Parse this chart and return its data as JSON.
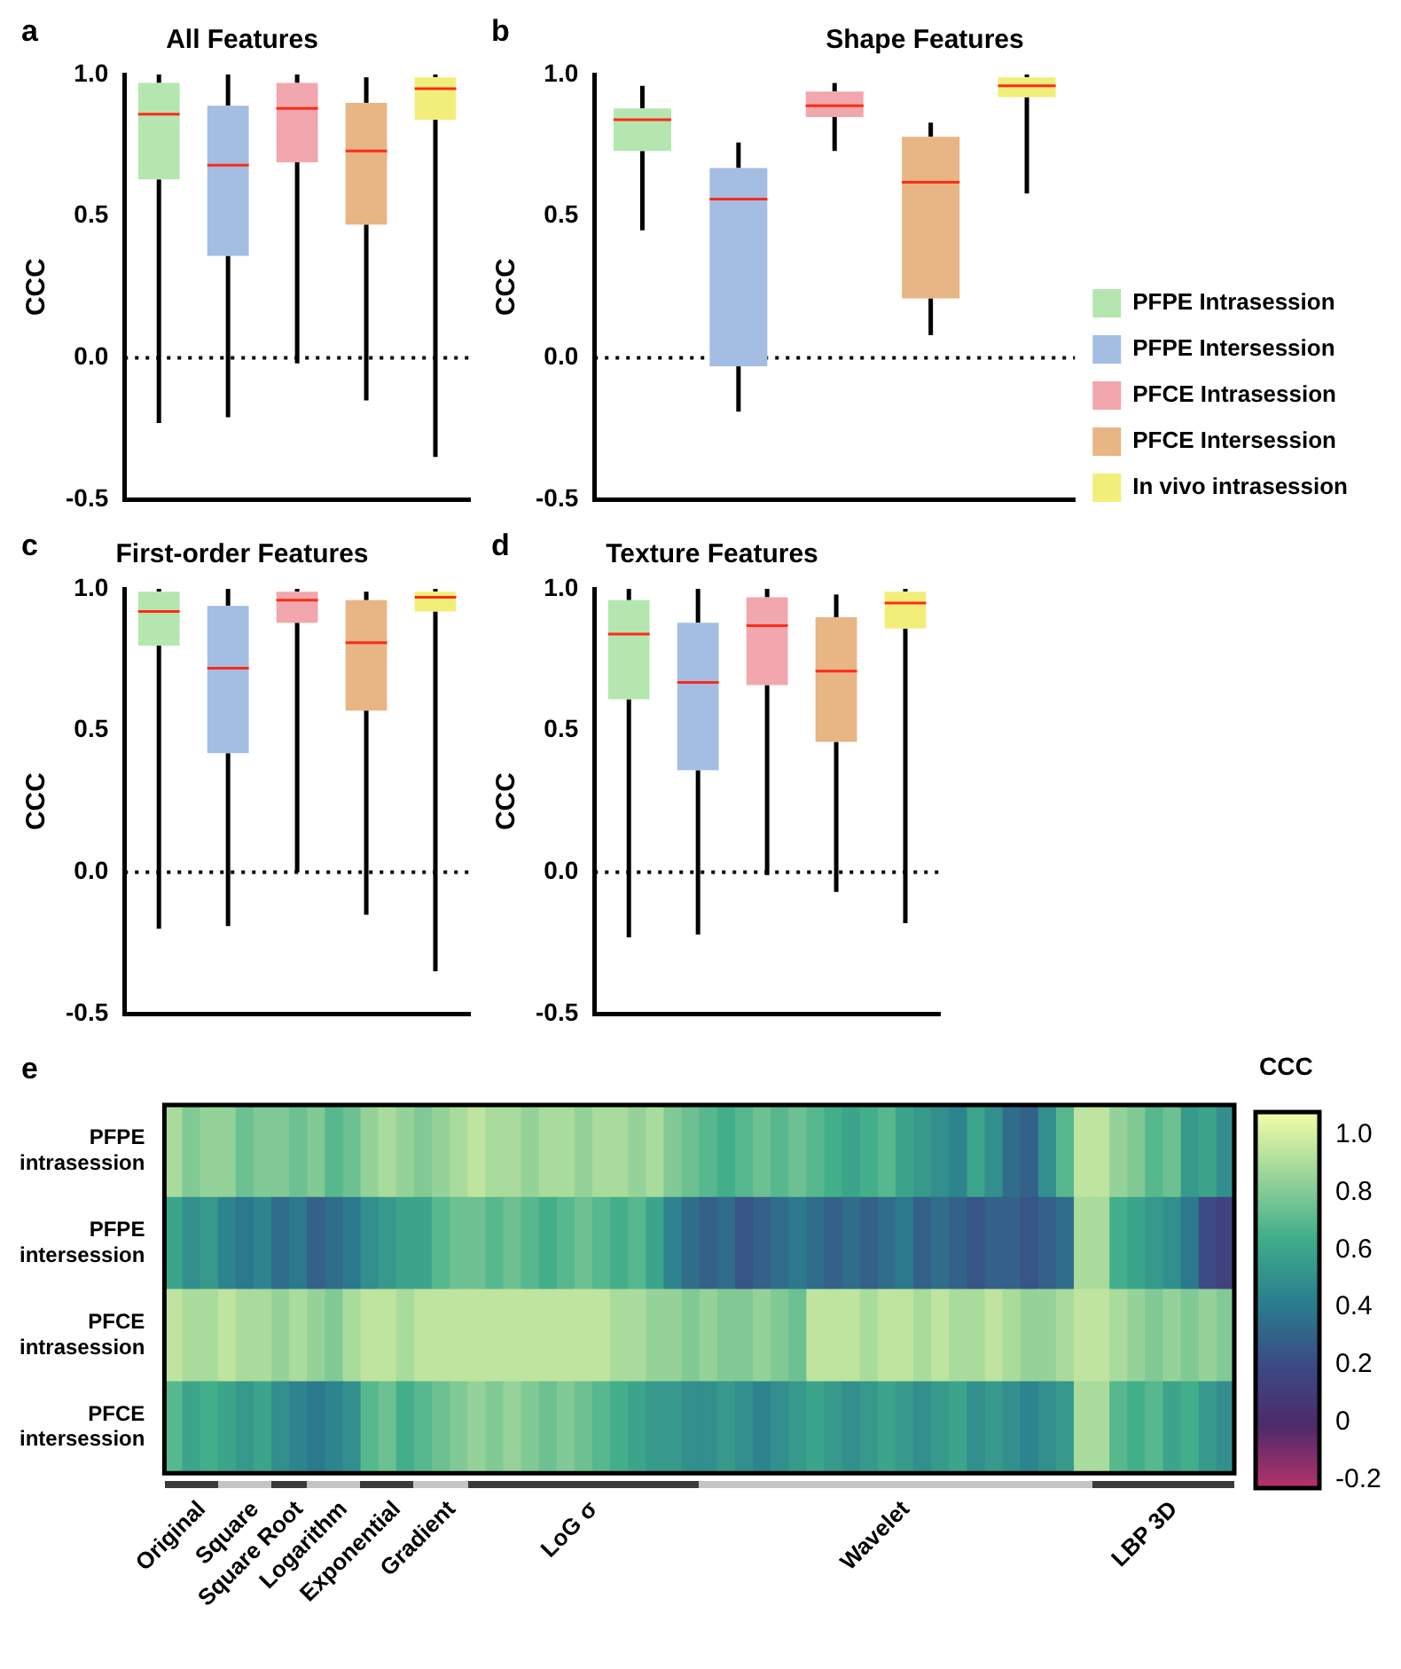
{
  "chart_data": [
    {
      "type": "box",
      "title": "All Features",
      "ylabel": "CCC",
      "annotations": [
        "a"
      ],
      "categories": [
        null,
        null,
        null,
        null,
        null
      ],
      "series": [
        {
          "color": "#b5e6b0",
          "boxes": [
            {
              "low": -0.23,
              "q1": 0.63,
              "median": 0.86,
              "q3": 0.97,
              "high": 1.0
            },
            null,
            null,
            null,
            null
          ]
        },
        {
          "color": "#a3bde3",
          "boxes": [
            null,
            {
              "low": -0.21,
              "q1": 0.36,
              "median": 0.68,
              "q3": 0.89,
              "high": 1.0
            },
            null,
            null,
            null
          ]
        },
        {
          "color": "#f1a7ad",
          "boxes": [
            null,
            null,
            {
              "low": -0.02,
              "q1": 0.69,
              "median": 0.88,
              "q3": 0.97,
              "high": 1.0
            },
            null,
            null
          ]
        },
        {
          "color": "#e8b584",
          "boxes": [
            null,
            null,
            null,
            {
              "low": -0.15,
              "q1": 0.47,
              "median": 0.73,
              "q3": 0.9,
              "high": 0.99
            },
            null
          ]
        },
        {
          "color": "#f2ee7a",
          "boxes": [
            null,
            null,
            null,
            null,
            {
              "low": -0.35,
              "q1": 0.84,
              "median": 0.95,
              "q3": 0.99,
              "high": 1.0
            }
          ]
        }
      ],
      "ylim": [
        -0.5,
        1.0
      ],
      "yticks": [
        {
          "value": -0.5,
          "label": "-0.5"
        },
        {
          "value": 0,
          "label": "0.0"
        },
        {
          "value": 0.5,
          "label": "0.5"
        },
        {
          "value": 1,
          "label": "1.0"
        }
      ],
      "ref_lines": [
        {
          "axis": "y",
          "value": 0,
          "line_style": "dotted"
        }
      ],
      "tick_labels": "y"
    },
    {
      "type": "box",
      "title": "Shape Features",
      "ylabel": "CCC",
      "annotations": [
        "b"
      ],
      "categories": [
        null,
        null,
        null,
        null,
        null
      ],
      "series": [
        {
          "name": "PFPE Intrasession",
          "color": "#b5e6b0",
          "boxes": [
            {
              "low": 0.45,
              "q1": 0.73,
              "median": 0.84,
              "q3": 0.88,
              "high": 0.96
            },
            null,
            null,
            null,
            null
          ]
        },
        {
          "name": "PFPE Intersession",
          "color": "#a3bde3",
          "boxes": [
            null,
            {
              "low": -0.19,
              "q1": -0.03,
              "median": 0.56,
              "q3": 0.67,
              "high": 0.76
            },
            null,
            null,
            null
          ]
        },
        {
          "name": "PFCE Intrasession",
          "color": "#f1a7ad",
          "boxes": [
            null,
            null,
            {
              "low": 0.73,
              "q1": 0.85,
              "median": 0.89,
              "q3": 0.94,
              "high": 0.97
            },
            null,
            null
          ]
        },
        {
          "name": "PFCE Intersession",
          "color": "#e8b584",
          "boxes": [
            null,
            null,
            null,
            {
              "low": 0.08,
              "q1": 0.21,
              "median": 0.62,
              "q3": 0.78,
              "high": 0.83
            },
            null
          ]
        },
        {
          "name": "In vivo intrasession",
          "color": "#f2ee7a",
          "boxes": [
            null,
            null,
            null,
            null,
            {
              "low": 0.58,
              "q1": 0.92,
              "median": 0.96,
              "q3": 0.99,
              "high": 1.0
            }
          ]
        }
      ],
      "ylim": [
        -0.5,
        1.0
      ],
      "yticks": [
        {
          "value": -0.5,
          "label": "-0.5"
        },
        {
          "value": 0,
          "label": "0.0"
        },
        {
          "value": 0.5,
          "label": "0.5"
        },
        {
          "value": 1,
          "label": "1.0"
        }
      ],
      "ref_lines": [
        {
          "axis": "y",
          "value": 0,
          "line_style": "dotted"
        }
      ],
      "tick_labels": "y",
      "legend": "right"
    },
    {
      "type": "box",
      "title": "First-order Features",
      "ylabel": "CCC",
      "annotations": [
        "c"
      ],
      "categories": [
        null,
        null,
        null,
        null,
        null
      ],
      "series": [
        {
          "color": "#b5e6b0",
          "boxes": [
            {
              "low": -0.2,
              "q1": 0.8,
              "median": 0.92,
              "q3": 0.99,
              "high": 1.0
            },
            null,
            null,
            null,
            null
          ]
        },
        {
          "color": "#a3bde3",
          "boxes": [
            null,
            {
              "low": -0.19,
              "q1": 0.42,
              "median": 0.72,
              "q3": 0.94,
              "high": 1.0
            },
            null,
            null,
            null
          ]
        },
        {
          "color": "#f1a7ad",
          "boxes": [
            null,
            null,
            {
              "low": 0.0,
              "q1": 0.88,
              "median": 0.96,
              "q3": 0.99,
              "high": 1.0
            },
            null,
            null
          ]
        },
        {
          "color": "#e8b584",
          "boxes": [
            null,
            null,
            null,
            {
              "low": -0.15,
              "q1": 0.57,
              "median": 0.81,
              "q3": 0.96,
              "high": 0.99
            },
            null
          ]
        },
        {
          "color": "#f2ee7a",
          "boxes": [
            null,
            null,
            null,
            null,
            {
              "low": -0.35,
              "q1": 0.92,
              "median": 0.97,
              "q3": 0.99,
              "high": 1.0
            }
          ]
        }
      ],
      "ylim": [
        -0.5,
        1.0
      ],
      "yticks": [
        {
          "value": -0.5,
          "label": "-0.5"
        },
        {
          "value": 0,
          "label": "0.0"
        },
        {
          "value": 0.5,
          "label": "0.5"
        },
        {
          "value": 1,
          "label": "1.0"
        }
      ],
      "ref_lines": [
        {
          "axis": "y",
          "value": 0,
          "line_style": "dotted"
        }
      ],
      "tick_labels": "y"
    },
    {
      "type": "box",
      "title": "Texture Features",
      "ylabel": "CCC",
      "annotations": [
        "d"
      ],
      "categories": [
        null,
        null,
        null,
        null,
        null
      ],
      "series": [
        {
          "color": "#b5e6b0",
          "boxes": [
            {
              "low": -0.23,
              "q1": 0.61,
              "median": 0.84,
              "q3": 0.96,
              "high": 1.0
            },
            null,
            null,
            null,
            null
          ]
        },
        {
          "color": "#a3bde3",
          "boxes": [
            null,
            {
              "low": -0.22,
              "q1": 0.36,
              "median": 0.67,
              "q3": 0.88,
              "high": 1.0
            },
            null,
            null,
            null
          ]
        },
        {
          "color": "#f1a7ad",
          "boxes": [
            null,
            null,
            {
              "low": -0.01,
              "q1": 0.66,
              "median": 0.87,
              "q3": 0.97,
              "high": 1.0
            },
            null,
            null
          ]
        },
        {
          "color": "#e8b584",
          "boxes": [
            null,
            null,
            null,
            {
              "low": -0.07,
              "q1": 0.46,
              "median": 0.71,
              "q3": 0.9,
              "high": 0.98
            },
            null
          ]
        },
        {
          "color": "#f2ee7a",
          "boxes": [
            null,
            null,
            null,
            null,
            {
              "low": -0.18,
              "q1": 0.86,
              "median": 0.95,
              "q3": 0.99,
              "high": 1.0
            }
          ]
        }
      ],
      "ylim": [
        -0.5,
        1.0
      ],
      "yticks": [
        {
          "value": -0.5,
          "label": "-0.5"
        },
        {
          "value": 0,
          "label": "0.0"
        },
        {
          "value": 0.5,
          "label": "0.5"
        },
        {
          "value": 1,
          "label": "1.0"
        }
      ],
      "ref_lines": [
        {
          "axis": "y",
          "value": 0,
          "line_style": "dotted"
        }
      ],
      "tick_labels": "y"
    },
    {
      "type": "heatmap",
      "clabel": "CCC",
      "annotations": [
        "e",
        "Original",
        "Square",
        "Square Root",
        "Logarithm",
        "Exponential",
        "Gradient",
        "LoG σ",
        "Wavelet",
        "LBP 3D"
      ],
      "categories": [
        null,
        null,
        null,
        null,
        null,
        null,
        null,
        null,
        null,
        null,
        null,
        null,
        null,
        null,
        null,
        null,
        null,
        null,
        null,
        null,
        null,
        null,
        null,
        null,
        null,
        null,
        null,
        null,
        null,
        null,
        null,
        null,
        null,
        null,
        null,
        null,
        null,
        null,
        null,
        null,
        null,
        null,
        null,
        null,
        null,
        null,
        null,
        null,
        null,
        null,
        null,
        null,
        null,
        null,
        null,
        null,
        null,
        null,
        null,
        null
      ],
      "y_categories": [
        "PFPE intrasession",
        "PFPE intersession",
        "PFCE intrasession",
        "PFCE intersession"
      ],
      "cells": [
        [
          0.9,
          0.8,
          0.85,
          0.85,
          0.75,
          0.8,
          0.8,
          0.75,
          0.8,
          0.7,
          0.75,
          0.85,
          0.9,
          0.85,
          0.8,
          0.85,
          0.9,
          0.95,
          0.9,
          0.9,
          0.85,
          0.9,
          0.9,
          0.85,
          0.9,
          0.9,
          0.85,
          0.9,
          0.8,
          0.75,
          0.7,
          0.65,
          0.7,
          0.75,
          0.7,
          0.75,
          0.7,
          0.65,
          0.6,
          0.65,
          0.7,
          0.6,
          0.55,
          0.5,
          0.45,
          0.6,
          0.5,
          0.35,
          0.3,
          0.5,
          0.7,
          0.95,
          0.95,
          0.85,
          0.8,
          0.7,
          0.75,
          0.55,
          0.6,
          0.5
        ],
        [
          0.6,
          0.5,
          0.55,
          0.45,
          0.4,
          0.45,
          0.35,
          0.4,
          0.3,
          0.35,
          0.4,
          0.5,
          0.55,
          0.6,
          0.6,
          0.7,
          0.75,
          0.75,
          0.7,
          0.75,
          0.7,
          0.65,
          0.7,
          0.75,
          0.7,
          0.65,
          0.7,
          0.6,
          0.45,
          0.35,
          0.3,
          0.35,
          0.25,
          0.3,
          0.35,
          0.4,
          0.35,
          0.3,
          0.35,
          0.3,
          0.35,
          0.4,
          0.3,
          0.35,
          0.3,
          0.25,
          0.3,
          0.3,
          0.25,
          0.3,
          0.35,
          0.9,
          0.9,
          0.65,
          0.6,
          0.55,
          0.5,
          0.4,
          0.2,
          0.15
        ],
        [
          0.95,
          0.9,
          0.9,
          0.95,
          0.9,
          0.9,
          0.85,
          0.9,
          0.85,
          0.8,
          0.9,
          0.95,
          0.95,
          0.9,
          0.95,
          0.95,
          0.95,
          0.95,
          0.95,
          0.95,
          0.95,
          0.95,
          0.95,
          0.95,
          0.95,
          0.9,
          0.9,
          0.85,
          0.85,
          0.8,
          0.85,
          0.8,
          0.8,
          0.85,
          0.8,
          0.75,
          0.95,
          0.95,
          0.95,
          0.9,
          0.95,
          0.95,
          0.9,
          0.95,
          0.9,
          0.9,
          0.95,
          0.9,
          0.85,
          0.85,
          0.9,
          0.95,
          0.95,
          0.9,
          0.85,
          0.8,
          0.85,
          0.8,
          0.85,
          0.8
        ],
        [
          0.7,
          0.6,
          0.65,
          0.6,
          0.55,
          0.6,
          0.5,
          0.45,
          0.4,
          0.45,
          0.5,
          0.7,
          0.75,
          0.65,
          0.7,
          0.75,
          0.8,
          0.85,
          0.8,
          0.85,
          0.8,
          0.75,
          0.8,
          0.75,
          0.7,
          0.65,
          0.6,
          0.55,
          0.55,
          0.5,
          0.5,
          0.55,
          0.5,
          0.45,
          0.5,
          0.55,
          0.6,
          0.55,
          0.5,
          0.55,
          0.6,
          0.55,
          0.5,
          0.55,
          0.6,
          0.5,
          0.55,
          0.5,
          0.45,
          0.5,
          0.55,
          0.9,
          0.9,
          0.7,
          0.65,
          0.7,
          0.6,
          0.65,
          0.55,
          0.5
        ]
      ],
      "clim": [
        -0.23,
        1.08
      ],
      "cticks": [
        -0.2,
        0,
        0.2,
        0.4,
        0.6,
        0.8,
        {
          "value": 1,
          "label": "1.0"
        }
      ]
    }
  ]
}
